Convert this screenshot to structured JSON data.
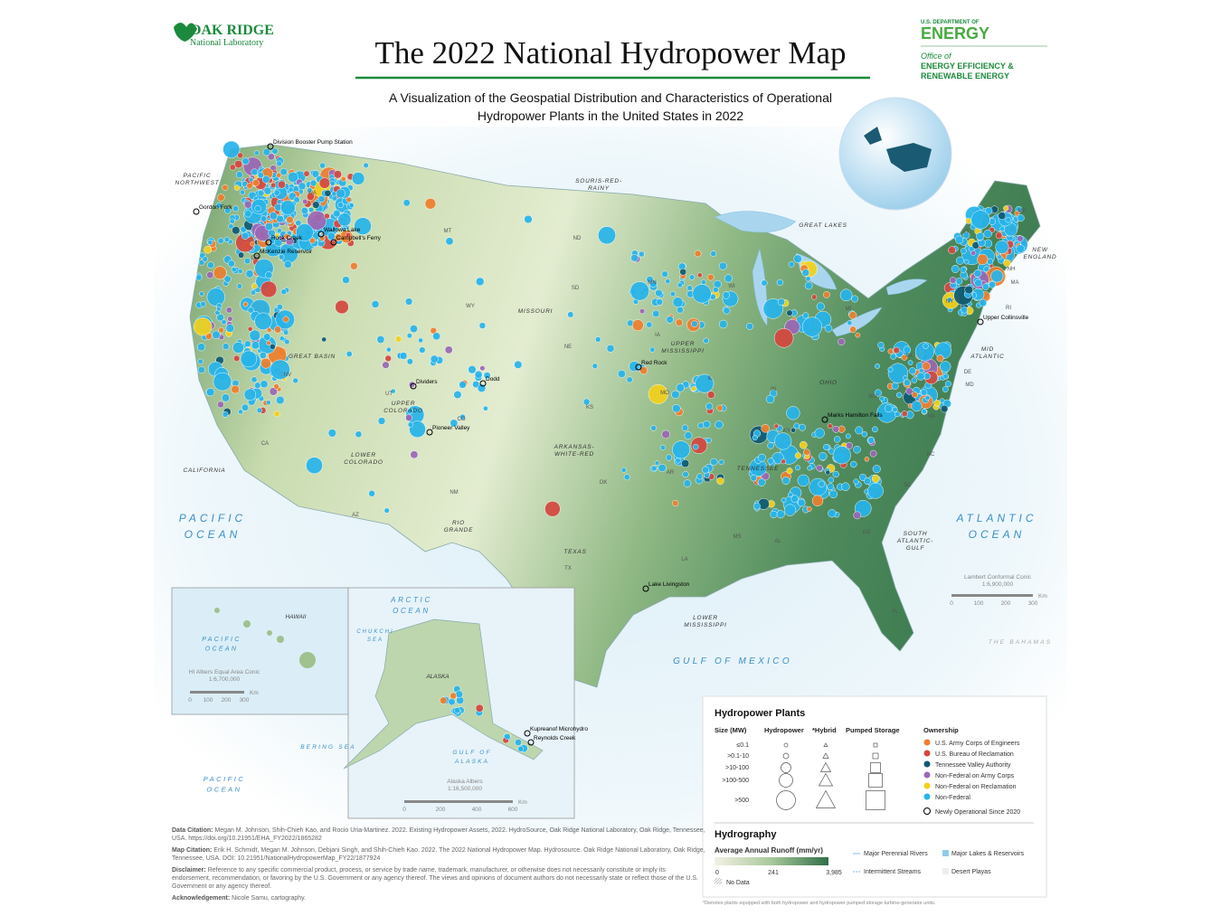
{
  "header": {
    "left_logo": [
      "OAK RIDGE",
      "National Laboratory"
    ],
    "right_logo": [
      "U.S. DEPARTMENT OF",
      "ENERGY",
      "Office of",
      "ENERGY EFFICIENCY &",
      "RENEWABLE ENERGY"
    ],
    "title": "The 2022 National Hydropower Map",
    "subtitle": [
      "A Visualization of the Geospatial Distribution and Characteristics of Operational",
      "Hydropower Plants in the United States in 2022"
    ]
  },
  "map": {
    "regions": [
      [
        "PACIFIC",
        "NORTHWEST"
      ],
      [
        "SOURIS-RED-",
        "RAINY"
      ],
      [
        "GREAT LAKES"
      ],
      [
        "NEW",
        "ENGLAND"
      ],
      [
        "MISSOURI"
      ],
      [
        "UPPER",
        "MISSISSIPPI"
      ],
      [
        "GREAT BASIN"
      ],
      [
        "UPPER",
        "COLORADO"
      ],
      [
        "OHIO"
      ],
      [
        "MID",
        "ATLANTIC"
      ],
      [
        "LOWER",
        "COLORADO"
      ],
      [
        "ARKANSAS-",
        "WHITE-RED"
      ],
      [
        "TENNESSEE"
      ],
      [
        "CALIFORNIA"
      ],
      [
        "RIO",
        "GRANDE"
      ],
      [
        "TEXAS"
      ],
      [
        "SOUTH",
        "ATLANTIC-",
        "GULF"
      ],
      [
        "LOWER",
        "MISSISSIPPI"
      ]
    ],
    "oceans": [
      [
        "PACIFIC",
        "OCEAN"
      ],
      [
        "ATLANTIC",
        "OCEAN"
      ],
      [
        "GULF OF MEXICO"
      ],
      [
        "ARCTIC",
        "OCEAN"
      ],
      [
        "CHUKCHI",
        "SEA"
      ],
      [
        "BERING SEA"
      ],
      [
        "GULF OF",
        "ALASKA"
      ],
      [
        "PACIFIC",
        "OCEAN"
      ],
      [
        "PACIFIC",
        "OCEAN"
      ],
      [
        "THE BAHAMAS"
      ]
    ],
    "states": [
      "WA",
      "OR",
      "MT",
      "ND",
      "SD",
      "WY",
      "NE",
      "NV",
      "UT",
      "CO",
      "CA",
      "AZ",
      "NM",
      "KS",
      "OK",
      "TX",
      "MN",
      "IA",
      "MO",
      "WI",
      "MI",
      "IL",
      "IN",
      "KY",
      "AR",
      "LA",
      "MS",
      "AL",
      "GA",
      "FL",
      "SC",
      "NC",
      "VA",
      "WV",
      "PA",
      "NY",
      "VT",
      "NH",
      "ME",
      "MA",
      "RI",
      "DE",
      "MD"
    ],
    "plants": [
      "Division Booster Pump Station",
      "Gordon Fork",
      "Rock Creek",
      "Wallowa Lake",
      "Campbell's Ferry",
      "McKenzie Reservoir",
      "Dividers",
      "Dodd",
      "Pioneer Valley",
      "Red Rock",
      "Upper Collinsville",
      "Marks Hamilton Falls",
      "Lake Livingston",
      "Kupreanof Microhydro",
      "Reynolds Creek"
    ],
    "insets": {
      "hawaii": {
        "name": "HAWAII",
        "projection": [
          "HI Albers Equal Area Conic",
          "1:6,700,000"
        ],
        "scale": [
          "0",
          "100",
          "200",
          "300",
          "Km"
        ]
      },
      "alaska": {
        "name": "ALASKA",
        "projection": [
          "Alaska Albers",
          "1:16,500,000"
        ],
        "scale": [
          "0",
          "200",
          "400",
          "600",
          "Km"
        ]
      }
    },
    "main_scale": {
      "projection": [
        "Lambert Conformal Conic",
        "1:6,900,000"
      ],
      "scale": [
        "0",
        "100",
        "200",
        "300",
        "Km"
      ]
    }
  },
  "legend": {
    "title": "Hydropower Plants",
    "columns": [
      "Size (MW)",
      "Hydropower",
      "*Hybrid",
      "Pumped Storage"
    ],
    "sizes": [
      "≤0.1",
      ">0.1-10",
      ">10-100",
      ">100-500",
      ">500"
    ],
    "ownership_title": "Ownership",
    "ownership": [
      {
        "name": "U.S. Army Corps of Engineers",
        "color": "#ee7f2d"
      },
      {
        "name": "U.S. Bureau of Reclamation",
        "color": "#d4473f"
      },
      {
        "name": "Tennessee Valley Authority",
        "color": "#0f5a73"
      },
      {
        "name": "Non-Federal on Army Corps",
        "color": "#9a68b5"
      },
      {
        "name": "Non-Federal on Reclamation",
        "color": "#f3d11b"
      },
      {
        "name": "Non-Federal",
        "color": "#27b4ea"
      }
    ],
    "new": "Newly Operational Since 2020",
    "hydro_title": "Hydrography",
    "runoff_title": "Average Annual Runoff (mm/yr)",
    "runoff_labels": [
      "0",
      "241",
      "3,985"
    ],
    "no_data": "No Data",
    "features": [
      "Major Perennial Rivers",
      "Intermittent Streams",
      "Major Lakes & Reservoirs",
      "Desert Playas"
    ],
    "footnote": "*Denotes plants equipped with both hydropower and hydropower pumped storage turbine-generator units."
  },
  "citations": [
    {
      "label": "Data Citation:",
      "text": "Megan M. Johnson, Shih-Chieh Kao, and Rocio Uria-Martinez. 2022. Existing Hydropower Assets, 2022. HydroSource, Oak Ridge National Laboratory, Oak Ridge, Tennessee, USA. https://doi.org/10.21951/EHA_FY2022/1865282"
    },
    {
      "label": "Map Citation:",
      "text": "Erik H. Schmidt, Megan M. Johnson, Debjani Singh, and Shih-Chieh Kao. 2022. The 2022 National Hydropower Map. Hydrosource. Oak Ridge National Laboratory, Oak Ridge, Tennessee, USA. DOI: 10.21951/NationalHydropowerMap_FY22/1877924"
    },
    {
      "label": "Disclaimer:",
      "text": "Reference to any specific commercial product, process, or service by trade name, trademark, manufacturer, or otherwise does not necessarily constitute or imply its endorsement, recommendation, or favoring by the U.S. Government or any agency thereof. The views and opinions of document authors do not necessarily state or reflect those of the U.S. Government or any agency thereof."
    },
    {
      "label": "Acknowledgement:",
      "text": "Nicole Samu, cartography."
    }
  ]
}
